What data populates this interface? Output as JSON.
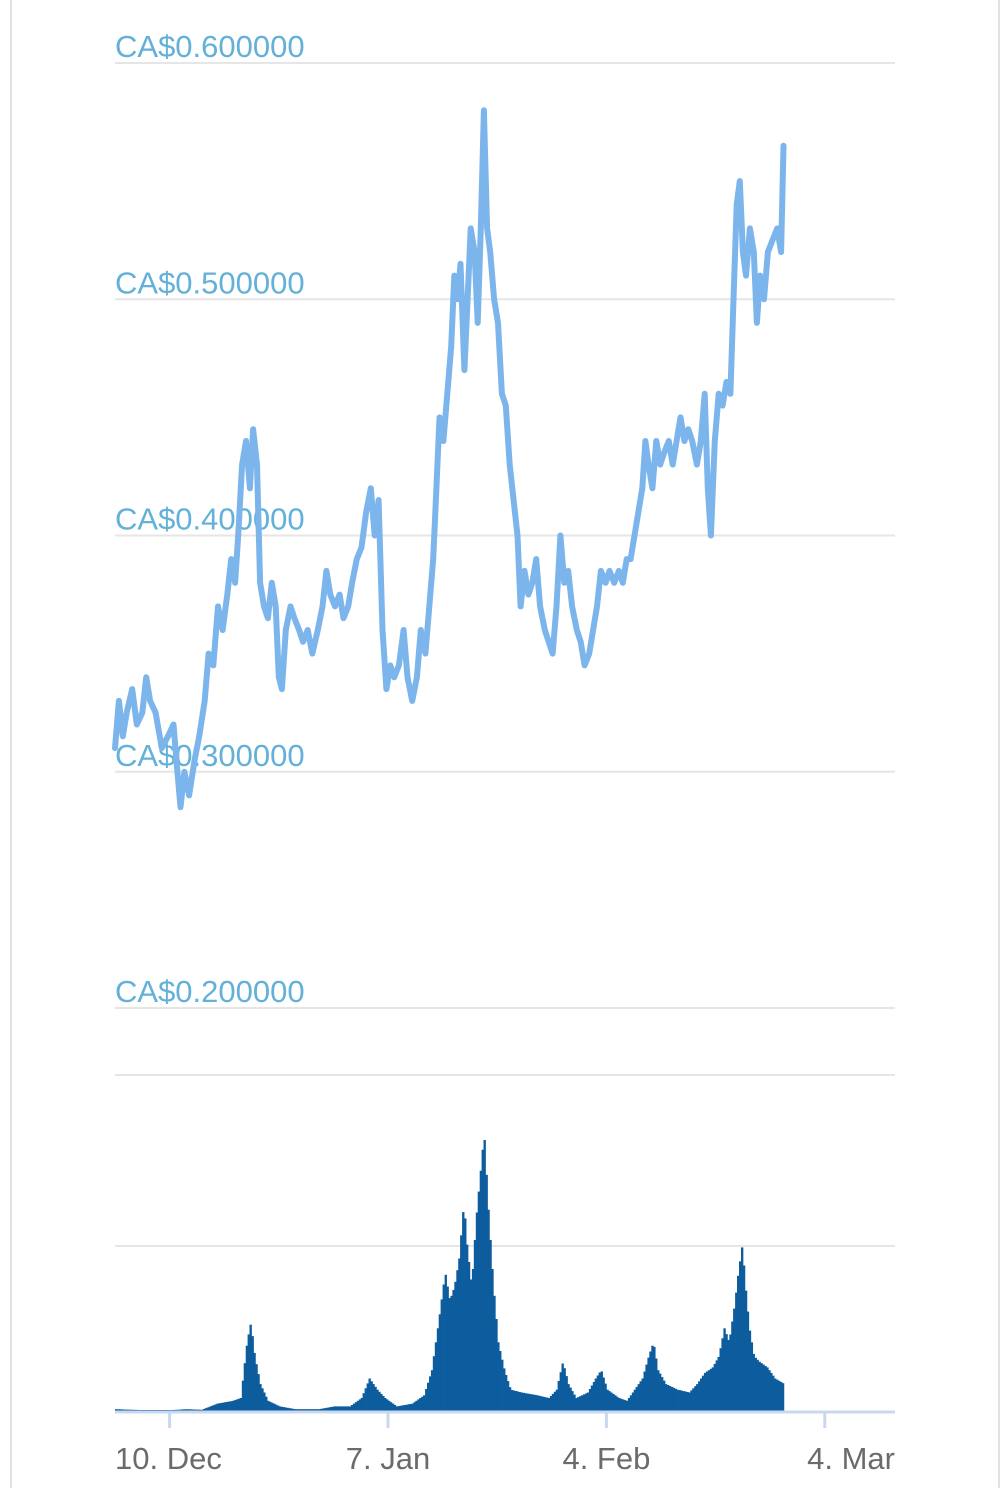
{
  "chart_data": {
    "type": "line",
    "colors": {
      "price_line": "#7cb5ec",
      "volume_bars": "#0d5c9e",
      "y_labels": "#63b0d9",
      "grid": "#e6e6e6",
      "x_labels": "#6b6b6b"
    },
    "price_axis": {
      "ticks": [
        0.2,
        0.3,
        0.4,
        0.5,
        0.6
      ],
      "tick_labels": [
        "CA$0.200000",
        "CA$0.300000",
        "CA$0.400000",
        "CA$0.500000",
        "CA$0.600000"
      ],
      "ylim": [
        0.2,
        0.6
      ]
    },
    "x_axis": {
      "tick_labels": [
        "10. Dec",
        "7. Jan",
        "4. Feb",
        "4. Mar"
      ],
      "tick_days": [
        7,
        35,
        63,
        91
      ],
      "range_days": [
        0,
        100
      ]
    },
    "price_series": [
      [
        0.0,
        0.31
      ],
      [
        0.5,
        0.33
      ],
      [
        1.0,
        0.315
      ],
      [
        1.5,
        0.325
      ],
      [
        2.2,
        0.335
      ],
      [
        2.8,
        0.32
      ],
      [
        3.5,
        0.325
      ],
      [
        4.0,
        0.34
      ],
      [
        4.5,
        0.33
      ],
      [
        5.2,
        0.325
      ],
      [
        6.0,
        0.31
      ],
      [
        6.8,
        0.315
      ],
      [
        7.5,
        0.32
      ],
      [
        8.0,
        0.3
      ],
      [
        8.4,
        0.285
      ],
      [
        8.9,
        0.3
      ],
      [
        9.5,
        0.29
      ],
      [
        10.2,
        0.305
      ],
      [
        10.8,
        0.315
      ],
      [
        11.5,
        0.33
      ],
      [
        12.0,
        0.35
      ],
      [
        12.6,
        0.345
      ],
      [
        13.2,
        0.37
      ],
      [
        13.8,
        0.36
      ],
      [
        14.4,
        0.375
      ],
      [
        14.9,
        0.39
      ],
      [
        15.4,
        0.38
      ],
      [
        15.8,
        0.4
      ],
      [
        16.3,
        0.43
      ],
      [
        16.8,
        0.44
      ],
      [
        17.3,
        0.42
      ],
      [
        17.7,
        0.445
      ],
      [
        18.2,
        0.43
      ],
      [
        18.6,
        0.38
      ],
      [
        19.1,
        0.37
      ],
      [
        19.6,
        0.365
      ],
      [
        20.1,
        0.38
      ],
      [
        20.6,
        0.37
      ],
      [
        21.0,
        0.34
      ],
      [
        21.4,
        0.335
      ],
      [
        21.9,
        0.36
      ],
      [
        22.5,
        0.37
      ],
      [
        23.0,
        0.365
      ],
      [
        23.6,
        0.36
      ],
      [
        24.1,
        0.355
      ],
      [
        24.7,
        0.36
      ],
      [
        25.3,
        0.35
      ],
      [
        26.0,
        0.36
      ],
      [
        26.6,
        0.37
      ],
      [
        27.1,
        0.385
      ],
      [
        27.6,
        0.375
      ],
      [
        28.2,
        0.37
      ],
      [
        28.8,
        0.375
      ],
      [
        29.3,
        0.365
      ],
      [
        29.9,
        0.37
      ],
      [
        30.4,
        0.38
      ],
      [
        31.0,
        0.39
      ],
      [
        31.6,
        0.395
      ],
      [
        32.2,
        0.41
      ],
      [
        32.8,
        0.42
      ],
      [
        33.3,
        0.4
      ],
      [
        33.8,
        0.415
      ],
      [
        34.3,
        0.36
      ],
      [
        34.8,
        0.335
      ],
      [
        35.3,
        0.345
      ],
      [
        35.8,
        0.34
      ],
      [
        36.4,
        0.345
      ],
      [
        37.0,
        0.36
      ],
      [
        37.5,
        0.34
      ],
      [
        38.1,
        0.33
      ],
      [
        38.7,
        0.34
      ],
      [
        39.2,
        0.36
      ],
      [
        39.8,
        0.35
      ],
      [
        40.3,
        0.37
      ],
      [
        40.8,
        0.39
      ],
      [
        41.2,
        0.42
      ],
      [
        41.6,
        0.45
      ],
      [
        42.1,
        0.44
      ],
      [
        42.6,
        0.46
      ],
      [
        43.1,
        0.48
      ],
      [
        43.5,
        0.51
      ],
      [
        43.9,
        0.5
      ],
      [
        44.3,
        0.515
      ],
      [
        44.8,
        0.47
      ],
      [
        45.2,
        0.5
      ],
      [
        45.6,
        0.53
      ],
      [
        46.1,
        0.52
      ],
      [
        46.5,
        0.49
      ],
      [
        46.9,
        0.53
      ],
      [
        47.3,
        0.58
      ],
      [
        47.7,
        0.53
      ],
      [
        48.1,
        0.52
      ],
      [
        48.6,
        0.5
      ],
      [
        49.1,
        0.49
      ],
      [
        49.6,
        0.46
      ],
      [
        50.1,
        0.455
      ],
      [
        50.6,
        0.43
      ],
      [
        51.1,
        0.415
      ],
      [
        51.6,
        0.4
      ],
      [
        52.0,
        0.37
      ],
      [
        52.5,
        0.385
      ],
      [
        53.0,
        0.375
      ],
      [
        53.5,
        0.38
      ],
      [
        54.0,
        0.39
      ],
      [
        54.5,
        0.37
      ],
      [
        55.1,
        0.36
      ],
      [
        55.6,
        0.355
      ],
      [
        56.1,
        0.35
      ],
      [
        56.6,
        0.37
      ],
      [
        57.1,
        0.4
      ],
      [
        57.6,
        0.38
      ],
      [
        58.1,
        0.385
      ],
      [
        58.6,
        0.37
      ],
      [
        59.2,
        0.36
      ],
      [
        59.7,
        0.355
      ],
      [
        60.2,
        0.345
      ],
      [
        60.8,
        0.35
      ],
      [
        61.3,
        0.36
      ],
      [
        61.8,
        0.37
      ],
      [
        62.3,
        0.385
      ],
      [
        62.9,
        0.38
      ],
      [
        63.4,
        0.385
      ],
      [
        64.0,
        0.38
      ],
      [
        64.6,
        0.385
      ],
      [
        65.1,
        0.38
      ],
      [
        65.6,
        0.39
      ],
      [
        66.1,
        0.39
      ],
      [
        66.6,
        0.4
      ],
      [
        67.1,
        0.41
      ],
      [
        67.6,
        0.42
      ],
      [
        68.0,
        0.44
      ],
      [
        68.4,
        0.43
      ],
      [
        68.9,
        0.42
      ],
      [
        69.4,
        0.44
      ],
      [
        69.9,
        0.43
      ],
      [
        70.4,
        0.435
      ],
      [
        71.0,
        0.44
      ],
      [
        71.5,
        0.43
      ],
      [
        72.0,
        0.44
      ],
      [
        72.5,
        0.45
      ],
      [
        73.0,
        0.44
      ],
      [
        73.5,
        0.445
      ],
      [
        74.0,
        0.44
      ],
      [
        74.6,
        0.43
      ],
      [
        75.1,
        0.44
      ],
      [
        75.6,
        0.46
      ],
      [
        76.0,
        0.42
      ],
      [
        76.4,
        0.4
      ],
      [
        76.9,
        0.44
      ],
      [
        77.4,
        0.46
      ],
      [
        77.9,
        0.455
      ],
      [
        78.4,
        0.465
      ],
      [
        78.9,
        0.46
      ],
      [
        79.3,
        0.5
      ],
      [
        79.7,
        0.54
      ],
      [
        80.1,
        0.55
      ],
      [
        80.5,
        0.52
      ],
      [
        80.9,
        0.51
      ],
      [
        81.4,
        0.53
      ],
      [
        81.9,
        0.52
      ],
      [
        82.3,
        0.49
      ],
      [
        82.7,
        0.51
      ],
      [
        83.2,
        0.5
      ],
      [
        83.7,
        0.52
      ],
      [
        84.3,
        0.525
      ],
      [
        84.9,
        0.53
      ],
      [
        85.4,
        0.52
      ],
      [
        85.7,
        0.565
      ]
    ],
    "volume_series": [
      [
        0.0,
        0.01
      ],
      [
        2.0,
        0.008
      ],
      [
        6.0,
        0.005
      ],
      [
        9.0,
        0.01
      ],
      [
        11.0,
        0.008
      ],
      [
        13.0,
        0.03
      ],
      [
        15.0,
        0.04
      ],
      [
        16.0,
        0.05
      ],
      [
        16.8,
        0.25
      ],
      [
        17.3,
        0.32
      ],
      [
        17.8,
        0.2
      ],
      [
        18.5,
        0.1
      ],
      [
        19.5,
        0.04
      ],
      [
        21.0,
        0.02
      ],
      [
        23.0,
        0.01
      ],
      [
        26.0,
        0.01
      ],
      [
        28.0,
        0.02
      ],
      [
        30.0,
        0.02
      ],
      [
        31.5,
        0.05
      ],
      [
        32.5,
        0.12
      ],
      [
        33.5,
        0.08
      ],
      [
        34.5,
        0.05
      ],
      [
        36.0,
        0.02
      ],
      [
        38.0,
        0.03
      ],
      [
        39.5,
        0.06
      ],
      [
        40.5,
        0.15
      ],
      [
        41.5,
        0.35
      ],
      [
        42.2,
        0.5
      ],
      [
        42.8,
        0.4
      ],
      [
        43.4,
        0.45
      ],
      [
        44.0,
        0.55
      ],
      [
        44.6,
        0.75
      ],
      [
        45.0,
        0.6
      ],
      [
        45.6,
        0.45
      ],
      [
        46.2,
        0.7
      ],
      [
        46.7,
        0.85
      ],
      [
        47.2,
        1.0
      ],
      [
        47.8,
        0.7
      ],
      [
        48.4,
        0.45
      ],
      [
        49.0,
        0.25
      ],
      [
        49.8,
        0.15
      ],
      [
        50.6,
        0.08
      ],
      [
        52.0,
        0.07
      ],
      [
        54.0,
        0.06
      ],
      [
        55.5,
        0.05
      ],
      [
        56.5,
        0.08
      ],
      [
        57.3,
        0.18
      ],
      [
        58.0,
        0.1
      ],
      [
        59.0,
        0.05
      ],
      [
        60.5,
        0.07
      ],
      [
        61.5,
        0.12
      ],
      [
        62.2,
        0.15
      ],
      [
        63.0,
        0.08
      ],
      [
        64.5,
        0.05
      ],
      [
        65.5,
        0.04
      ],
      [
        66.5,
        0.08
      ],
      [
        67.5,
        0.12
      ],
      [
        68.3,
        0.2
      ],
      [
        68.9,
        0.25
      ],
      [
        69.5,
        0.15
      ],
      [
        70.5,
        0.1
      ],
      [
        72.0,
        0.08
      ],
      [
        73.5,
        0.07
      ],
      [
        74.5,
        0.1
      ],
      [
        75.5,
        0.14
      ],
      [
        76.5,
        0.16
      ],
      [
        77.3,
        0.2
      ],
      [
        78.0,
        0.3
      ],
      [
        78.6,
        0.25
      ],
      [
        79.3,
        0.38
      ],
      [
        79.8,
        0.5
      ],
      [
        80.3,
        0.6
      ],
      [
        80.7,
        0.45
      ],
      [
        81.2,
        0.3
      ],
      [
        81.8,
        0.2
      ],
      [
        82.5,
        0.18
      ],
      [
        83.5,
        0.16
      ],
      [
        84.5,
        0.12
      ],
      [
        85.7,
        0.1
      ]
    ]
  }
}
